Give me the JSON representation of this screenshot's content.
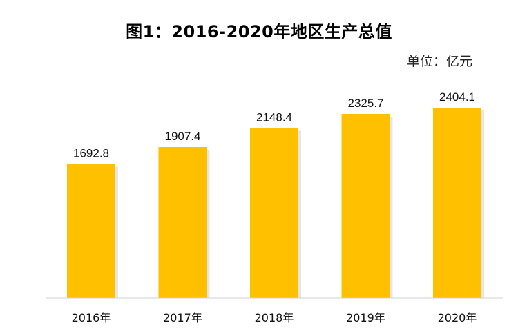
{
  "chart_data": {
    "type": "bar",
    "title": "图1：2016-2020年地区生产总值",
    "unit": "单位：亿元",
    "categories": [
      "2016年",
      "2017年",
      "2018年",
      "2019年",
      "2020年"
    ],
    "values": [
      1692.8,
      1907.4,
      2148.4,
      2325.7,
      2404.1
    ],
    "value_labels": [
      "1692.8",
      "1907.4",
      "2148.4",
      "2325.7",
      "2404.1"
    ],
    "ylim": [
      0,
      2600
    ],
    "bar_color": "#FFC000",
    "shadow_color": "#e6e6e6",
    "axis_color": "#d0d0d0",
    "grid": false,
    "legend": "none"
  }
}
